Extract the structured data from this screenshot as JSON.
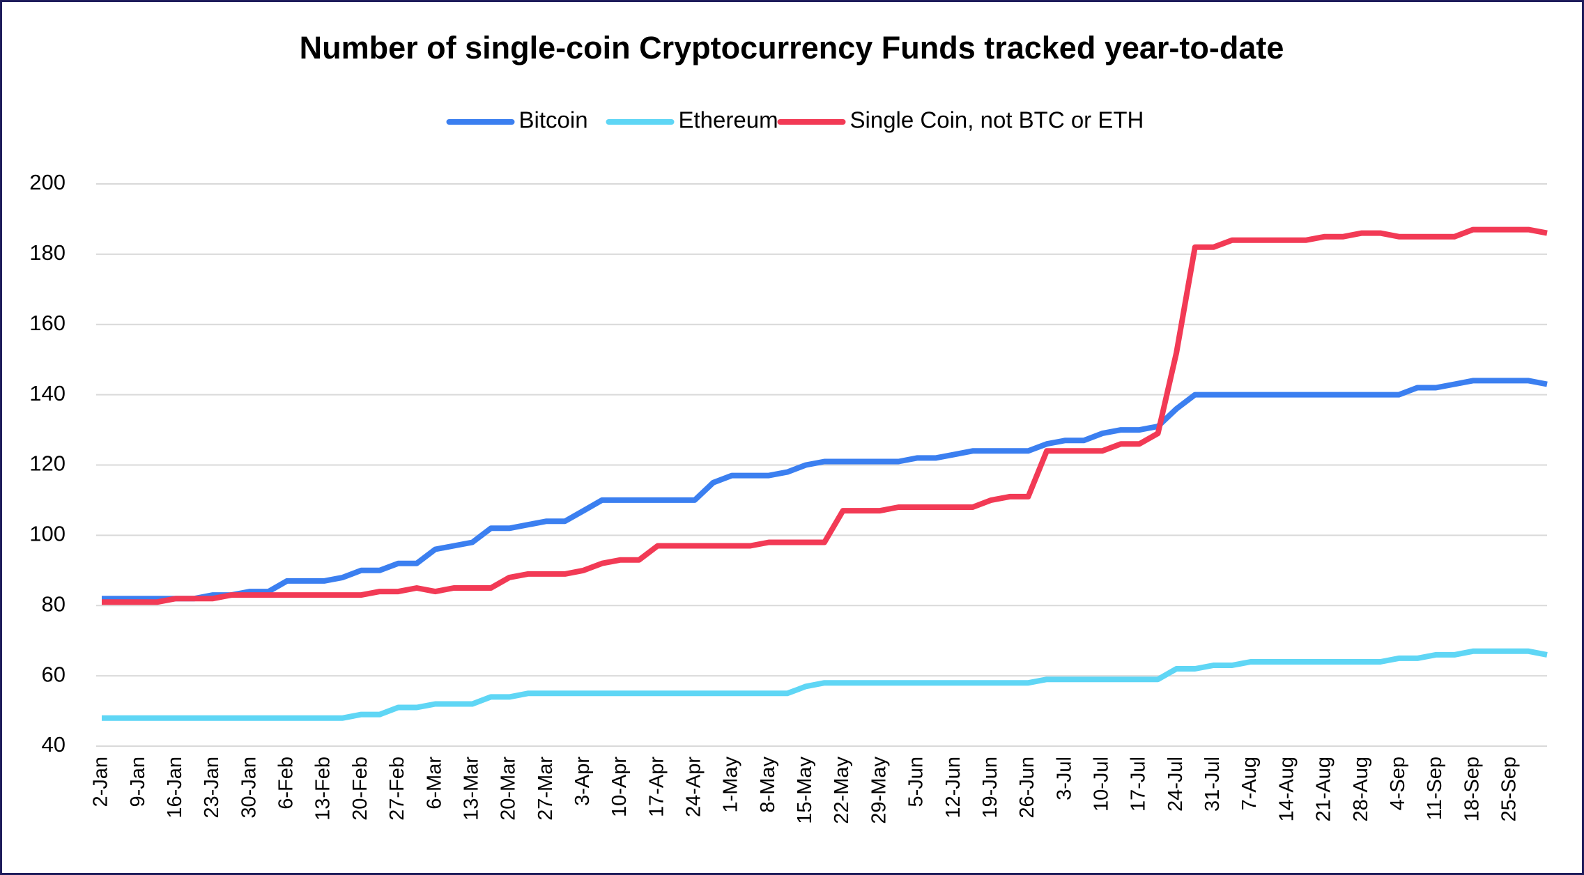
{
  "chart_data": {
    "type": "line",
    "title": "Number of single-coin Cryptocurrency Funds tracked year-to-date",
    "categories": [
      "2-Jan",
      null,
      "9-Jan",
      null,
      "16-Jan",
      null,
      "23-Jan",
      null,
      "30-Jan",
      null,
      "6-Feb",
      null,
      "13-Feb",
      null,
      "20-Feb",
      null,
      "27-Feb",
      null,
      "6-Mar",
      null,
      "13-Mar",
      null,
      "20-Mar",
      null,
      "27-Mar",
      null,
      "3-Apr",
      null,
      "10-Apr",
      null,
      "17-Apr",
      null,
      "24-Apr",
      null,
      "1-May",
      null,
      "8-May",
      null,
      "15-May",
      null,
      "22-May",
      null,
      "29-May",
      null,
      "5-Jun",
      null,
      "12-Jun",
      null,
      "19-Jun",
      null,
      "26-Jun",
      null,
      "3-Jul",
      null,
      "10-Jul",
      null,
      "17-Jul",
      null,
      "24-Jul",
      null,
      "31-Jul",
      null,
      "7-Aug",
      null,
      "14-Aug",
      null,
      "21-Aug",
      null,
      "28-Aug",
      null,
      "4-Sep",
      null,
      "11-Sep",
      null,
      "18-Sep",
      null,
      "25-Sep",
      null,
      null
    ],
    "series": [
      {
        "name": "Bitcoin",
        "color": "#3b7ff0",
        "values": [
          82,
          82,
          82,
          82,
          82,
          82,
          83,
          83,
          84,
          84,
          87,
          87,
          87,
          88,
          90,
          90,
          92,
          92,
          96,
          97,
          98,
          102,
          102,
          103,
          104,
          104,
          107,
          110,
          110,
          110,
          110,
          110,
          110,
          115,
          117,
          117,
          117,
          118,
          120,
          121,
          121,
          121,
          121,
          121,
          122,
          122,
          123,
          124,
          124,
          124,
          124,
          126,
          127,
          127,
          129,
          130,
          130,
          131,
          136,
          140,
          140,
          140,
          140,
          140,
          140,
          140,
          140,
          140,
          140,
          140,
          140,
          142,
          142,
          143,
          144,
          144,
          144,
          144,
          143
        ]
      },
      {
        "name": "Ethereum",
        "color": "#5fd6f5",
        "values": [
          48,
          48,
          48,
          48,
          48,
          48,
          48,
          48,
          48,
          48,
          48,
          48,
          48,
          48,
          49,
          49,
          51,
          51,
          52,
          52,
          52,
          54,
          54,
          55,
          55,
          55,
          55,
          55,
          55,
          55,
          55,
          55,
          55,
          55,
          55,
          55,
          55,
          55,
          57,
          58,
          58,
          58,
          58,
          58,
          58,
          58,
          58,
          58,
          58,
          58,
          58,
          59,
          59,
          59,
          59,
          59,
          59,
          59,
          62,
          62,
          63,
          63,
          64,
          64,
          64,
          64,
          64,
          64,
          64,
          64,
          65,
          65,
          66,
          66,
          67,
          67,
          67,
          67,
          66
        ]
      },
      {
        "name": "Single Coin, not BTC or ETH",
        "color": "#f23a55",
        "values": [
          81,
          81,
          81,
          81,
          82,
          82,
          82,
          83,
          83,
          83,
          83,
          83,
          83,
          83,
          83,
          84,
          84,
          85,
          84,
          85,
          85,
          85,
          88,
          89,
          89,
          89,
          90,
          92,
          93,
          93,
          97,
          97,
          97,
          97,
          97,
          97,
          98,
          98,
          98,
          98,
          107,
          107,
          107,
          108,
          108,
          108,
          108,
          108,
          110,
          111,
          111,
          124,
          124,
          124,
          124,
          126,
          126,
          129,
          152,
          182,
          182,
          184,
          184,
          184,
          184,
          184,
          185,
          185,
          186,
          186,
          185,
          185,
          185,
          185,
          187,
          187,
          187,
          187,
          186
        ]
      }
    ],
    "ylim": [
      40,
      200
    ],
    "yticks": [
      40,
      60,
      80,
      100,
      120,
      140,
      160,
      180,
      200
    ],
    "grid": true
  }
}
